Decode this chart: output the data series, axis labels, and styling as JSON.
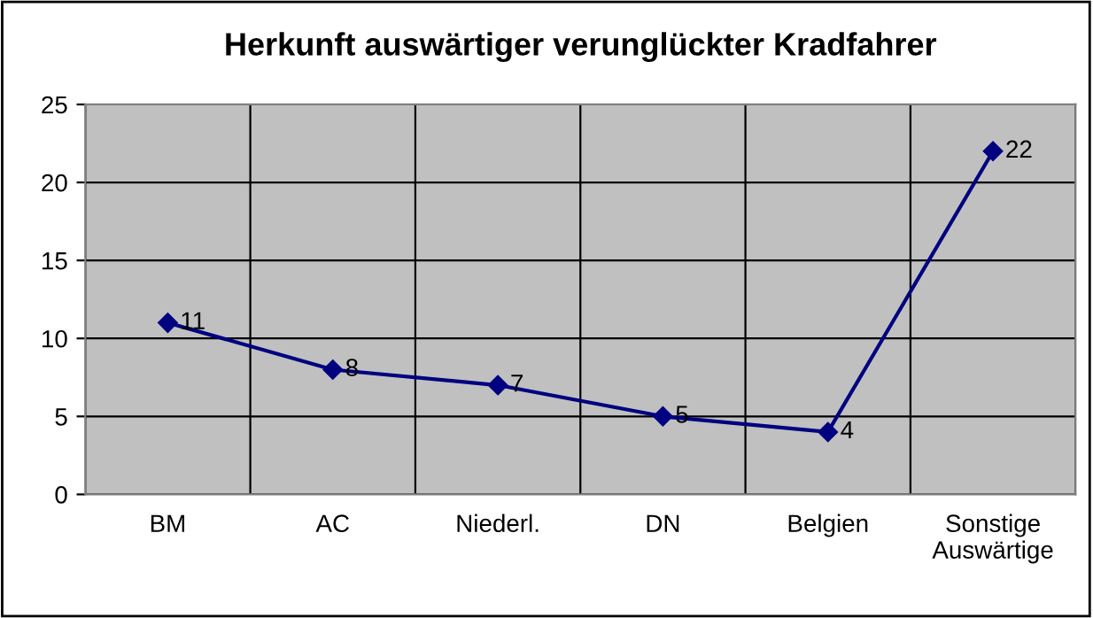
{
  "chart_data": {
    "type": "line",
    "title": "Herkunft auswärtiger verunglückter Kradfahrer",
    "categories": [
      "BM",
      "AC",
      "Niederl.",
      "DN",
      "Belgien",
      "Sonstige\nAuswärtige"
    ],
    "series": [
      {
        "color": "#000080",
        "values": [
          11,
          8,
          7,
          5,
          4,
          22
        ]
      }
    ],
    "ylim": [
      0,
      25
    ],
    "yticks": [
      0,
      5,
      10,
      15,
      20,
      25
    ],
    "grid": true,
    "marker": "diamond",
    "line_style": "solid",
    "data_labels": true
  }
}
